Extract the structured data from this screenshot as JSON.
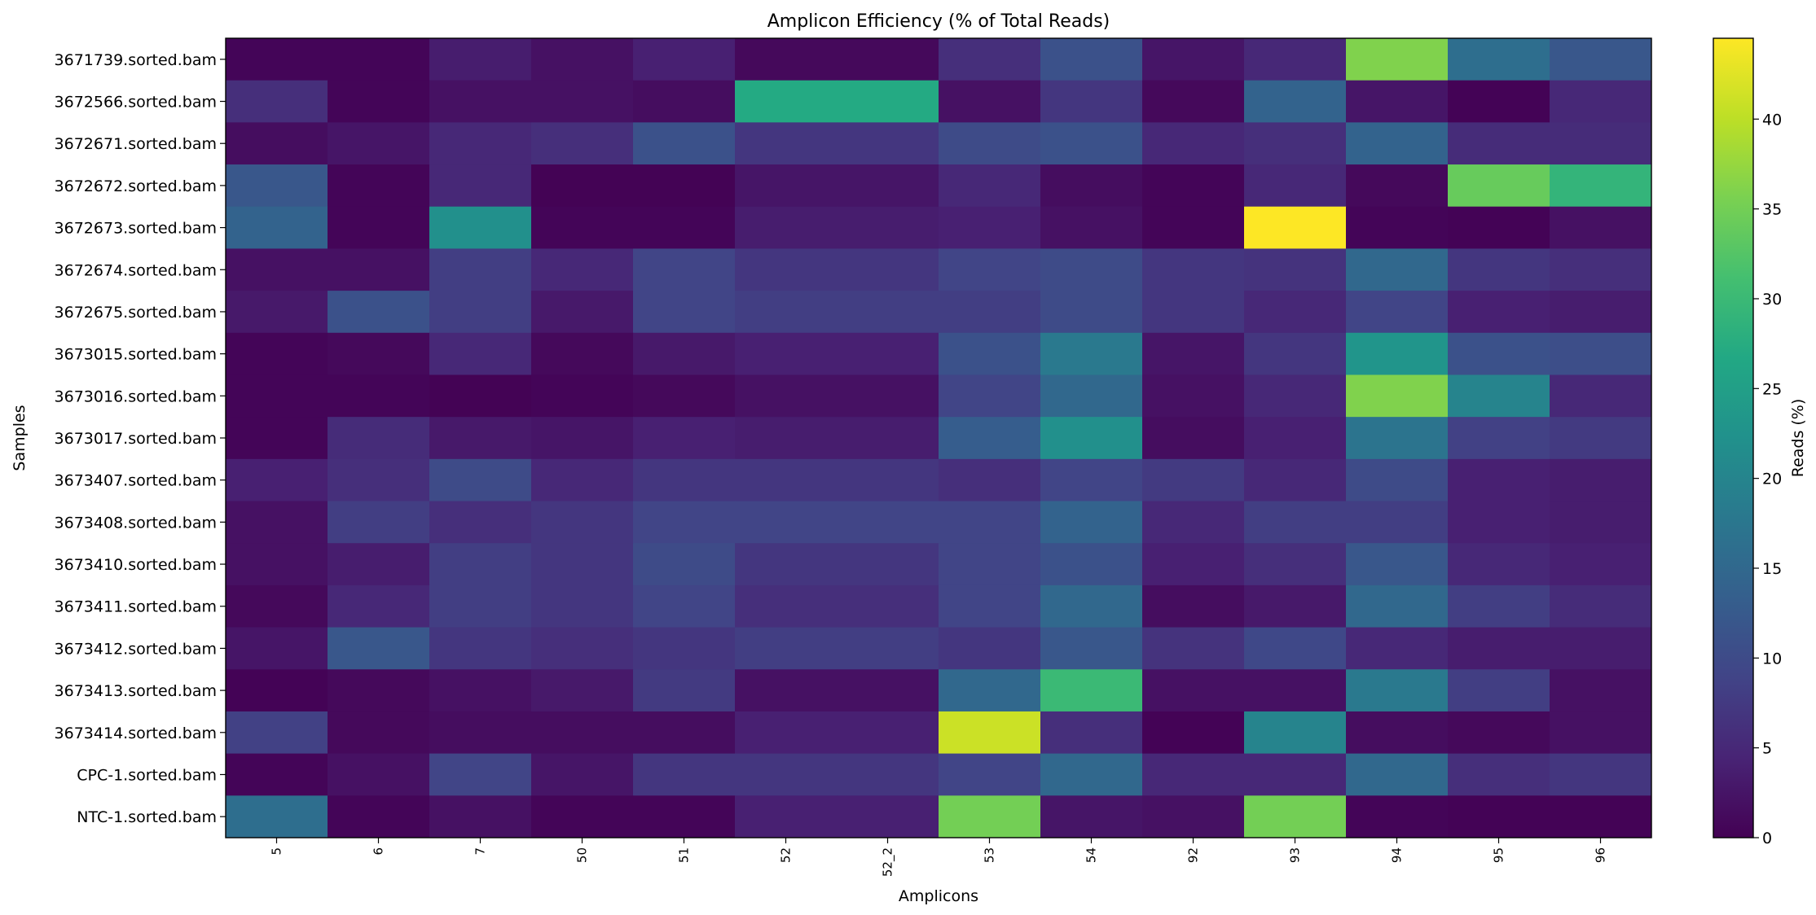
{
  "chart_data": {
    "type": "heatmap",
    "title": "Amplicon Efficiency (% of Total Reads)",
    "xlabel": "Amplicons",
    "ylabel": "Samples",
    "colorbar_label": "Reads (%)",
    "colormap": "viridis",
    "vmin": 0,
    "vmax": 44.5,
    "colorbar_ticks": [
      0,
      5,
      10,
      15,
      20,
      25,
      30,
      35,
      40
    ],
    "x_categories": [
      "5",
      "6",
      "7",
      "50",
      "51",
      "52",
      "52_2",
      "53",
      "54",
      "92",
      "93",
      "94",
      "95",
      "96"
    ],
    "y_categories": [
      "3671739.sorted.bam",
      "3672566.sorted.bam",
      "3672671.sorted.bam",
      "3672672.sorted.bam",
      "3672673.sorted.bam",
      "3672674.sorted.bam",
      "3672675.sorted.bam",
      "3673015.sorted.bam",
      "3673016.sorted.bam",
      "3673017.sorted.bam",
      "3673407.sorted.bam",
      "3673408.sorted.bam",
      "3673410.sorted.bam",
      "3673411.sorted.bam",
      "3673412.sorted.bam",
      "3673413.sorted.bam",
      "3673414.sorted.bam",
      "CPC-1.sorted.bam",
      "NTC-1.sorted.bam"
    ],
    "values": [
      [
        0.5,
        0.5,
        3.5,
        2,
        4,
        1,
        1,
        6,
        11,
        2.5,
        5,
        36,
        16,
        12
      ],
      [
        6,
        0.5,
        2,
        2,
        1.5,
        27,
        27,
        2,
        7,
        1,
        14,
        2.5,
        0.3,
        5
      ],
      [
        1.5,
        2.5,
        5,
        6,
        11,
        7,
        7,
        10,
        11,
        5,
        6,
        14,
        5.5,
        5.5
      ],
      [
        12,
        0.5,
        5,
        0.2,
        0.2,
        2.5,
        2.5,
        5,
        1.5,
        0.5,
        5,
        1,
        34,
        29
      ],
      [
        14,
        0.5,
        22,
        0.5,
        0.5,
        3.5,
        3.5,
        4,
        2,
        0.5,
        44.5,
        0.5,
        0.3,
        2
      ],
      [
        2,
        2,
        8,
        5,
        9,
        7,
        7,
        9,
        10,
        7,
        6.5,
        15,
        7,
        6
      ],
      [
        3,
        11,
        8,
        3,
        9,
        8,
        8,
        8,
        10,
        7,
        5,
        9,
        4,
        3.5
      ],
      [
        0.5,
        1,
        5,
        1,
        3,
        4,
        4,
        11,
        18,
        2.5,
        7,
        23,
        11,
        10.5
      ],
      [
        0.5,
        0.5,
        0.2,
        0.5,
        1,
        2,
        2,
        9,
        15,
        2,
        5,
        36,
        20,
        5
      ],
      [
        0.5,
        5.5,
        3,
        2.5,
        4,
        3.5,
        3.5,
        13,
        22,
        1.5,
        4,
        17,
        8.5,
        7.5
      ],
      [
        4,
        6,
        10,
        5,
        7,
        7,
        7,
        6,
        9,
        7.5,
        5,
        10,
        4,
        3.5
      ],
      [
        2,
        8,
        6,
        7,
        9,
        9,
        9,
        9,
        14,
        5,
        8,
        8,
        4,
        3.5
      ],
      [
        2,
        3.5,
        8,
        7,
        10,
        7,
        7,
        9,
        11,
        4,
        6,
        12,
        5,
        4
      ],
      [
        1,
        5,
        8,
        7,
        9,
        6,
        6,
        9,
        15,
        1.5,
        3,
        15,
        8,
        5.5
      ],
      [
        2.5,
        12,
        7,
        6,
        7,
        8,
        8,
        7,
        12,
        6.5,
        9.5,
        5,
        3.5,
        3.5
      ],
      [
        0.3,
        1,
        2,
        3,
        7.5,
        2,
        2,
        15,
        30,
        2,
        2,
        18,
        8,
        2
      ],
      [
        8.5,
        1,
        1.5,
        1.5,
        1.5,
        4,
        4,
        41,
        6,
        0.3,
        20,
        1.5,
        1,
        2
      ],
      [
        0.5,
        2,
        9,
        2.5,
        7,
        7,
        7,
        9,
        15,
        5,
        5,
        15,
        6,
        7
      ],
      [
        16,
        0.5,
        2,
        0.5,
        0.5,
        4,
        4,
        35,
        2.5,
        2,
        35,
        0.5,
        0.3,
        0.3
      ]
    ]
  }
}
